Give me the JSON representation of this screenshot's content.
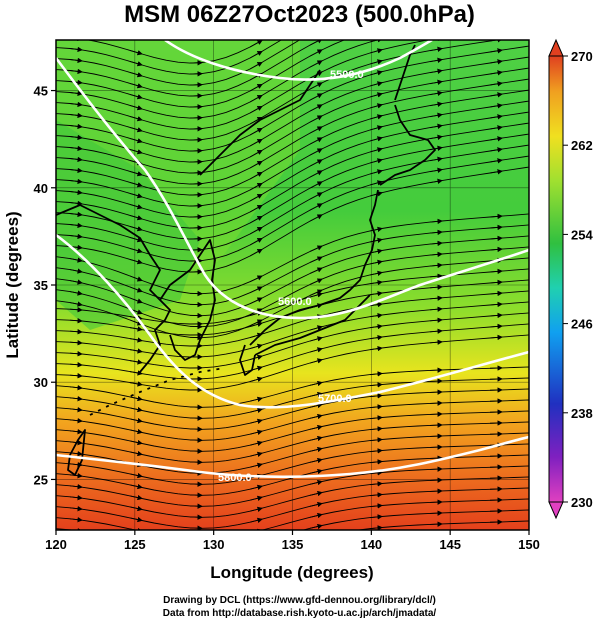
{
  "title": "MSM 06Z27Oct2023 (500.0hPa)",
  "map": {
    "xlabel": "Longitude (degrees)",
    "ylabel": "Latitude  (degrees)",
    "x_ticks": [
      "120",
      "125",
      "130",
      "135",
      "140",
      "145",
      "150"
    ],
    "y_ticks": [
      "25",
      "30",
      "35",
      "40",
      "45"
    ],
    "lon_range": [
      120,
      150
    ],
    "lat_range": [
      22.4,
      47.6
    ],
    "contour_labels": [
      "5500.0",
      "5600.0",
      "5700.0",
      "5800.0"
    ]
  },
  "colorbar": {
    "ticks": [
      "270",
      "262",
      "254",
      "246",
      "238",
      "230"
    ],
    "range": [
      230,
      270
    ],
    "colors": [
      "#e040c0",
      "#2030c0",
      "#10b0f0",
      "#20d0a0",
      "#30c040",
      "#a0e030",
      "#f0e020",
      "#f0a020",
      "#e04020"
    ]
  },
  "credits": {
    "line1": "Drawing by DCL (https://www.gfd-dennou.org/library/dcl/)",
    "line2": "Data from http://database.rish.kyoto-u.ac.jp/arch/jmadata/"
  }
}
